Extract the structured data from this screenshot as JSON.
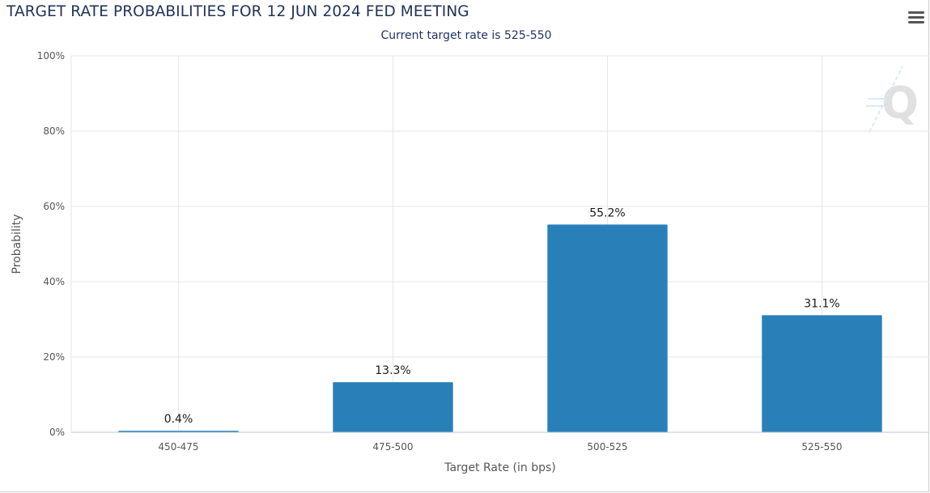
{
  "header": {
    "title": "TARGET RATE PROBABILITIES FOR 12 JUN 2024 FED MEETING",
    "subtitle": "Current target rate is 525-550",
    "menu_icon": "hamburger-menu-icon"
  },
  "watermark": {
    "icon": "q-logo-icon"
  },
  "colors": {
    "bar": "#2980b9",
    "grid": "#e6e6e6",
    "title": "#223355"
  },
  "chart_data": {
    "type": "bar",
    "title": "TARGET RATE PROBABILITIES FOR 12 JUN 2024 FED MEETING",
    "subtitle": "Current target rate is 525-550",
    "xlabel": "Target Rate (in bps)",
    "ylabel": "Probability",
    "categories": [
      "450-475",
      "475-500",
      "500-525",
      "525-550"
    ],
    "values": [
      0.4,
      13.3,
      55.2,
      31.1
    ],
    "data_labels": [
      "0.4%",
      "13.3%",
      "55.2%",
      "31.1%"
    ],
    "ylim": [
      0,
      100
    ],
    "yticks": [
      0,
      20,
      40,
      60,
      80,
      100
    ],
    "ytick_labels": [
      "0%",
      "20%",
      "40%",
      "60%",
      "80%",
      "100%"
    ],
    "grid": true,
    "legend": "none"
  }
}
